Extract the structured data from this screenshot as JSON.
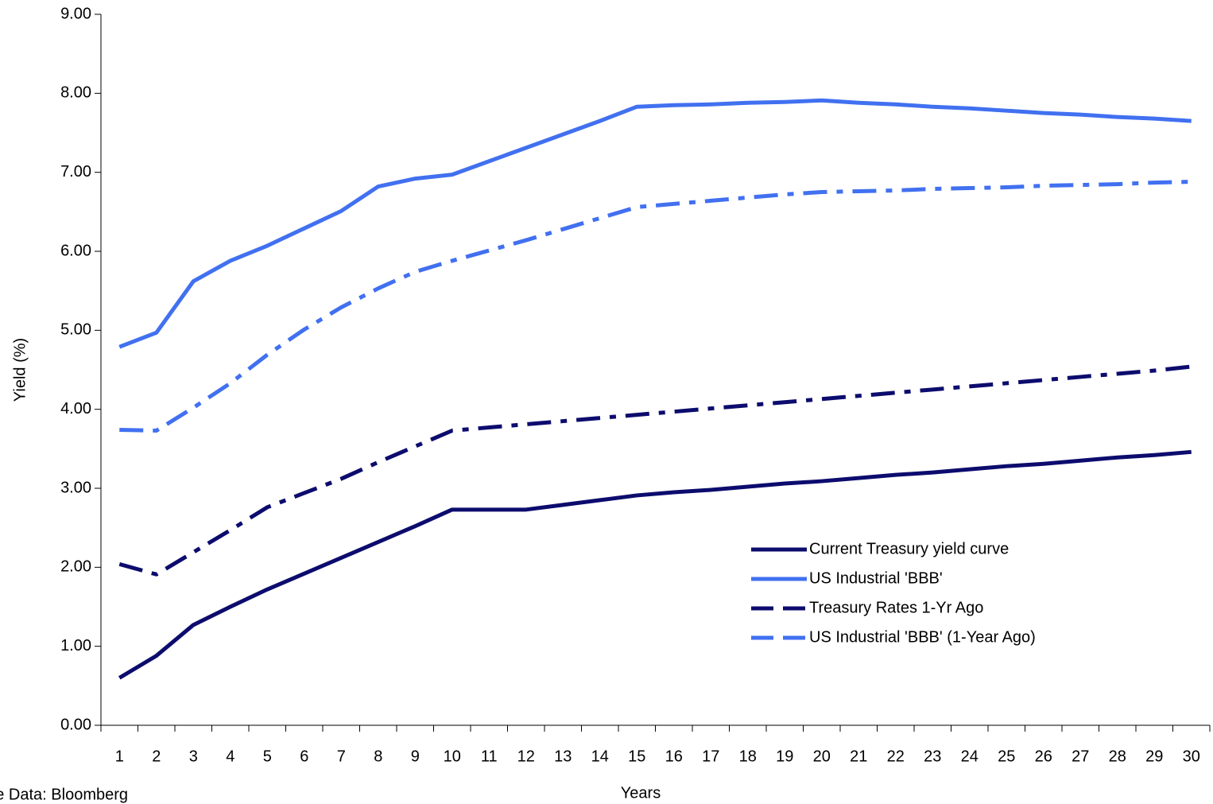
{
  "chart_data": {
    "type": "line",
    "y_label": "Yield (%)",
    "x_label": "Years",
    "source": "Source Data: Bloomberg",
    "categories": [
      "1",
      "2",
      "3",
      "4",
      "5",
      "6",
      "7",
      "8",
      "9",
      "10",
      "11",
      "12",
      "13",
      "14",
      "15",
      "16",
      "17",
      "18",
      "19",
      "20",
      "21",
      "22",
      "23",
      "24",
      "25",
      "26",
      "27",
      "28",
      "29",
      "30"
    ],
    "series": [
      {
        "name": "Current Treasury yield curve",
        "color": "#0c0c6e",
        "dash": "solid",
        "values": [
          0.6,
          0.88,
          1.27,
          1.5,
          1.72,
          1.92,
          2.12,
          2.32,
          2.52,
          2.73,
          2.73,
          2.73,
          2.79,
          2.85,
          2.91,
          2.95,
          2.98,
          3.02,
          3.06,
          3.09,
          3.13,
          3.17,
          3.2,
          3.24,
          3.28,
          3.31,
          3.35,
          3.39,
          3.42,
          3.46
        ]
      },
      {
        "name": "US Industrial 'BBB'",
        "color": "#4170f0",
        "dash": "solid",
        "values": [
          4.79,
          4.97,
          5.62,
          5.88,
          6.07,
          6.29,
          6.51,
          6.82,
          6.92,
          6.97,
          7.14,
          7.31,
          7.48,
          7.65,
          7.83,
          7.85,
          7.86,
          7.88,
          7.89,
          7.91,
          7.88,
          7.86,
          7.83,
          7.81,
          7.78,
          7.75,
          7.73,
          7.7,
          7.68,
          7.65
        ]
      },
      {
        "name": "Treasury Rates 1-Yr Ago",
        "color": "#0c0c6e",
        "dash": "dashdot",
        "values": [
          2.04,
          1.91,
          2.19,
          2.47,
          2.76,
          2.94,
          3.12,
          3.33,
          3.53,
          3.73,
          3.77,
          3.81,
          3.85,
          3.89,
          3.93,
          3.97,
          4.01,
          4.05,
          4.09,
          4.13,
          4.17,
          4.21,
          4.25,
          4.29,
          4.33,
          4.37,
          4.41,
          4.45,
          4.49,
          4.54
        ]
      },
      {
        "name": "US Industrial 'BBB' (1-Year Ago)",
        "color": "#4170f0",
        "dash": "dashdot",
        "values": [
          3.74,
          3.73,
          4.02,
          4.33,
          4.69,
          5.01,
          5.29,
          5.53,
          5.74,
          5.88,
          6.01,
          6.14,
          6.28,
          6.42,
          6.56,
          6.6,
          6.64,
          6.68,
          6.72,
          6.75,
          6.76,
          6.77,
          6.79,
          6.8,
          6.81,
          6.83,
          6.84,
          6.85,
          6.87,
          6.88
        ]
      }
    ],
    "ylim": [
      0,
      9
    ],
    "yticks": [
      {
        "value": 0,
        "label": "0.00"
      },
      {
        "value": 1,
        "label": "1.00"
      },
      {
        "value": 2,
        "label": "2.00"
      },
      {
        "value": 3,
        "label": "3.00"
      },
      {
        "value": 4,
        "label": "4.00"
      },
      {
        "value": 5,
        "label": "5.00"
      },
      {
        "value": 6,
        "label": "6.00"
      },
      {
        "value": 7,
        "label": "7.00"
      },
      {
        "value": 8,
        "label": "8.00"
      },
      {
        "value": 9,
        "label": "9.00"
      }
    ],
    "grid": false,
    "legend": "lower-right"
  }
}
